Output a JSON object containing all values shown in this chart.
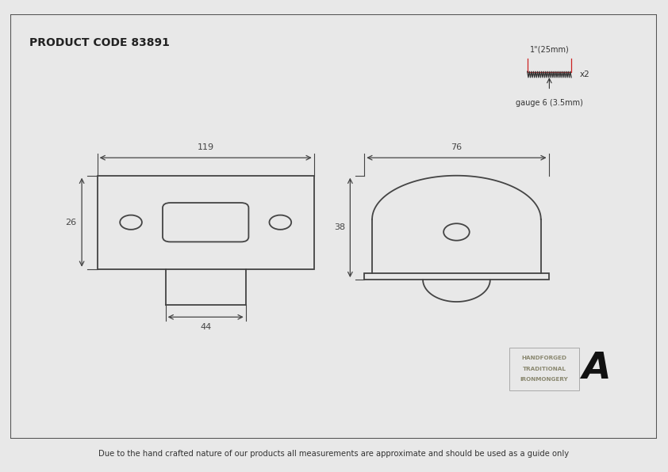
{
  "title": "PRODUCT CODE 83891",
  "footer": "Due to the hand crafted nature of our products all measurements are approximate and should be used as a guide only",
  "bg_color": "#e8e8e8",
  "drawing_bg": "#ffffff",
  "border_color": "#555555",
  "line_color": "#444444",
  "dim_color": "#444444",
  "text_color": "#333333",
  "screw_label": "1\"(25mm)",
  "screw_x2": "x2",
  "gauge_label": "gauge 6 (3.5mm)",
  "brand_line1": "HANDFORGED",
  "brand_line2": "TRADITIONAL",
  "brand_line3": "IRONMONGERY"
}
